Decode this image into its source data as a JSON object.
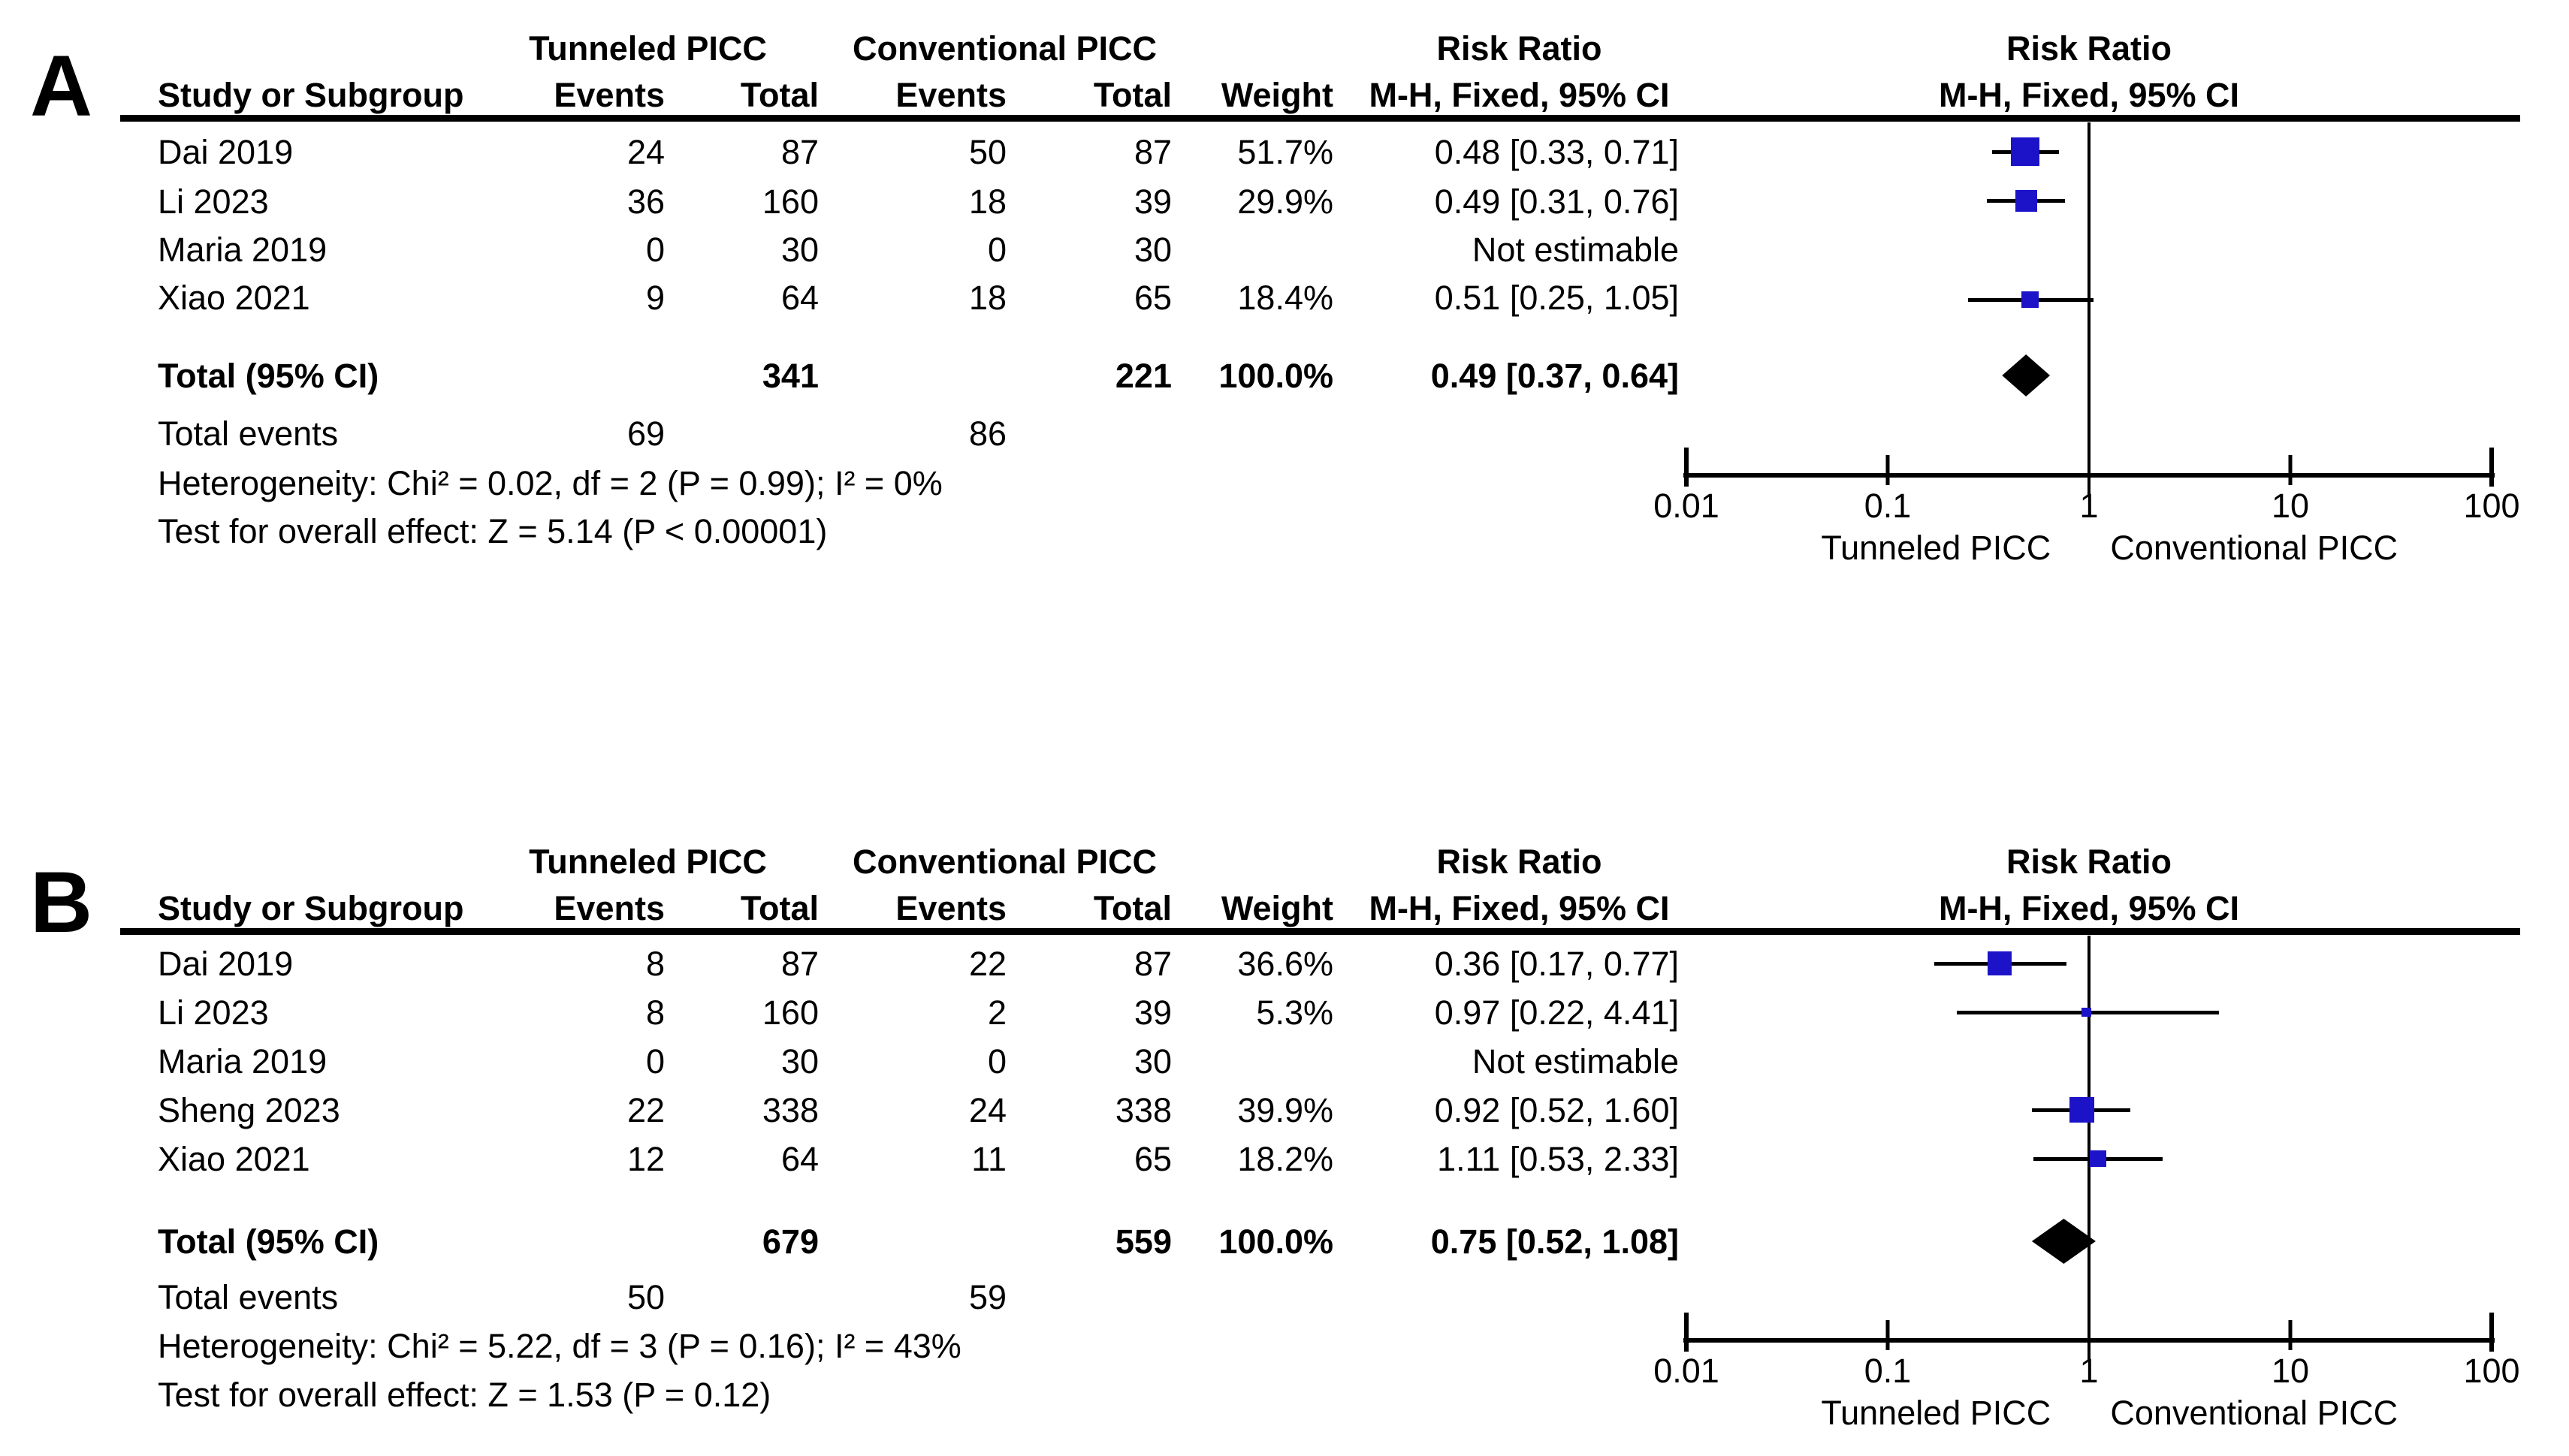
{
  "page": {
    "background": "#ffffff",
    "text_color": "#000000"
  },
  "chart_data": [
    {
      "type": "forest",
      "panel_label": "A",
      "effect_header": "Risk Ratio",
      "method_header": "M-H, Fixed, 95% CI",
      "group1_header": "Tunneled PICC",
      "group2_header": "Conventional PICC",
      "col_study": "Study or Subgroup",
      "col_events": "Events",
      "col_total": "Total",
      "col_weight": "Weight",
      "marker_color": "#1C13C9",
      "diamond_color": "#000000",
      "studies": [
        {
          "name": "Dai 2019",
          "e1": "24",
          "t1": "87",
          "e2": "50",
          "t2": "87",
          "weight": "51.7%",
          "ci_text": "0.48 [0.33, 0.71]",
          "rr": 0.48,
          "lo": 0.33,
          "hi": 0.71,
          "weight_pct": 51.7,
          "estimable": true
        },
        {
          "name": "Li 2023",
          "e1": "36",
          "t1": "160",
          "e2": "18",
          "t2": "39",
          "weight": "29.9%",
          "ci_text": "0.49 [0.31, 0.76]",
          "rr": 0.49,
          "lo": 0.31,
          "hi": 0.76,
          "weight_pct": 29.9,
          "estimable": true
        },
        {
          "name": "Maria 2019",
          "e1": "0",
          "t1": "30",
          "e2": "0",
          "t2": "30",
          "weight": "",
          "ci_text": "Not estimable",
          "estimable": false
        },
        {
          "name": "Xiao 2021",
          "e1": "9",
          "t1": "64",
          "e2": "18",
          "t2": "65",
          "weight": "18.4%",
          "ci_text": "0.51 [0.25, 1.05]",
          "rr": 0.51,
          "lo": 0.25,
          "hi": 1.05,
          "weight_pct": 18.4,
          "estimable": true
        }
      ],
      "total_row": {
        "label": "Total (95% CI)",
        "t1": "341",
        "t2": "221",
        "weight": "100.0%",
        "ci_text": "0.49 [0.37, 0.64]",
        "rr": 0.49,
        "lo": 0.37,
        "hi": 0.64
      },
      "total_events": {
        "label": "Total events",
        "e1": "69",
        "e2": "86"
      },
      "heterogeneity": "Heterogeneity: Chi² = 0.02, df = 2 (P = 0.99); I² = 0%",
      "overall_effect": "Test for overall effect: Z = 5.14 (P < 0.00001)",
      "axis": {
        "scale": "log10",
        "min": 0.01,
        "max": 100,
        "ticks": [
          "0.01",
          "0.1",
          "1",
          "10",
          "100"
        ],
        "favours_left": "Tunneled PICC",
        "favours_right": "Conventional PICC"
      }
    },
    {
      "type": "forest",
      "panel_label": "B",
      "effect_header": "Risk Ratio",
      "method_header": "M-H, Fixed, 95% CI",
      "group1_header": "Tunneled PICC",
      "group2_header": "Conventional PICC",
      "col_study": "Study or Subgroup",
      "col_events": "Events",
      "col_total": "Total",
      "col_weight": "Weight",
      "marker_color": "#1C13C9",
      "diamond_color": "#000000",
      "studies": [
        {
          "name": "Dai 2019",
          "e1": "8",
          "t1": "87",
          "e2": "22",
          "t2": "87",
          "weight": "36.6%",
          "ci_text": "0.36 [0.17, 0.77]",
          "rr": 0.36,
          "lo": 0.17,
          "hi": 0.77,
          "weight_pct": 36.6,
          "estimable": true
        },
        {
          "name": "Li 2023",
          "e1": "8",
          "t1": "160",
          "e2": "2",
          "t2": "39",
          "weight": "5.3%",
          "ci_text": "0.97 [0.22, 4.41]",
          "rr": 0.97,
          "lo": 0.22,
          "hi": 4.41,
          "weight_pct": 5.3,
          "estimable": true
        },
        {
          "name": "Maria 2019",
          "e1": "0",
          "t1": "30",
          "e2": "0",
          "t2": "30",
          "weight": "",
          "ci_text": "Not estimable",
          "estimable": false
        },
        {
          "name": "Sheng 2023",
          "e1": "22",
          "t1": "338",
          "e2": "24",
          "t2": "338",
          "weight": "39.9%",
          "ci_text": "0.92 [0.52, 1.60]",
          "rr": 0.92,
          "lo": 0.52,
          "hi": 1.6,
          "weight_pct": 39.9,
          "estimable": true
        },
        {
          "name": "Xiao 2021",
          "e1": "12",
          "t1": "64",
          "e2": "11",
          "t2": "65",
          "weight": "18.2%",
          "ci_text": "1.11 [0.53, 2.33]",
          "rr": 1.11,
          "lo": 0.53,
          "hi": 2.33,
          "weight_pct": 18.2,
          "estimable": true
        }
      ],
      "total_row": {
        "label": "Total (95% CI)",
        "t1": "679",
        "t2": "559",
        "weight": "100.0%",
        "ci_text": "0.75 [0.52, 1.08]",
        "rr": 0.75,
        "lo": 0.52,
        "hi": 1.08
      },
      "total_events": {
        "label": "Total events",
        "e1": "50",
        "e2": "59"
      },
      "heterogeneity": "Heterogeneity: Chi² = 5.22, df = 3 (P = 0.16); I² = 43%",
      "overall_effect": "Test for overall effect: Z = 1.53 (P = 0.12)",
      "axis": {
        "scale": "log10",
        "min": 0.01,
        "max": 100,
        "ticks": [
          "0.01",
          "0.1",
          "1",
          "10",
          "100"
        ],
        "favours_left": "Tunneled PICC",
        "favours_right": "Conventional PICC"
      }
    }
  ]
}
